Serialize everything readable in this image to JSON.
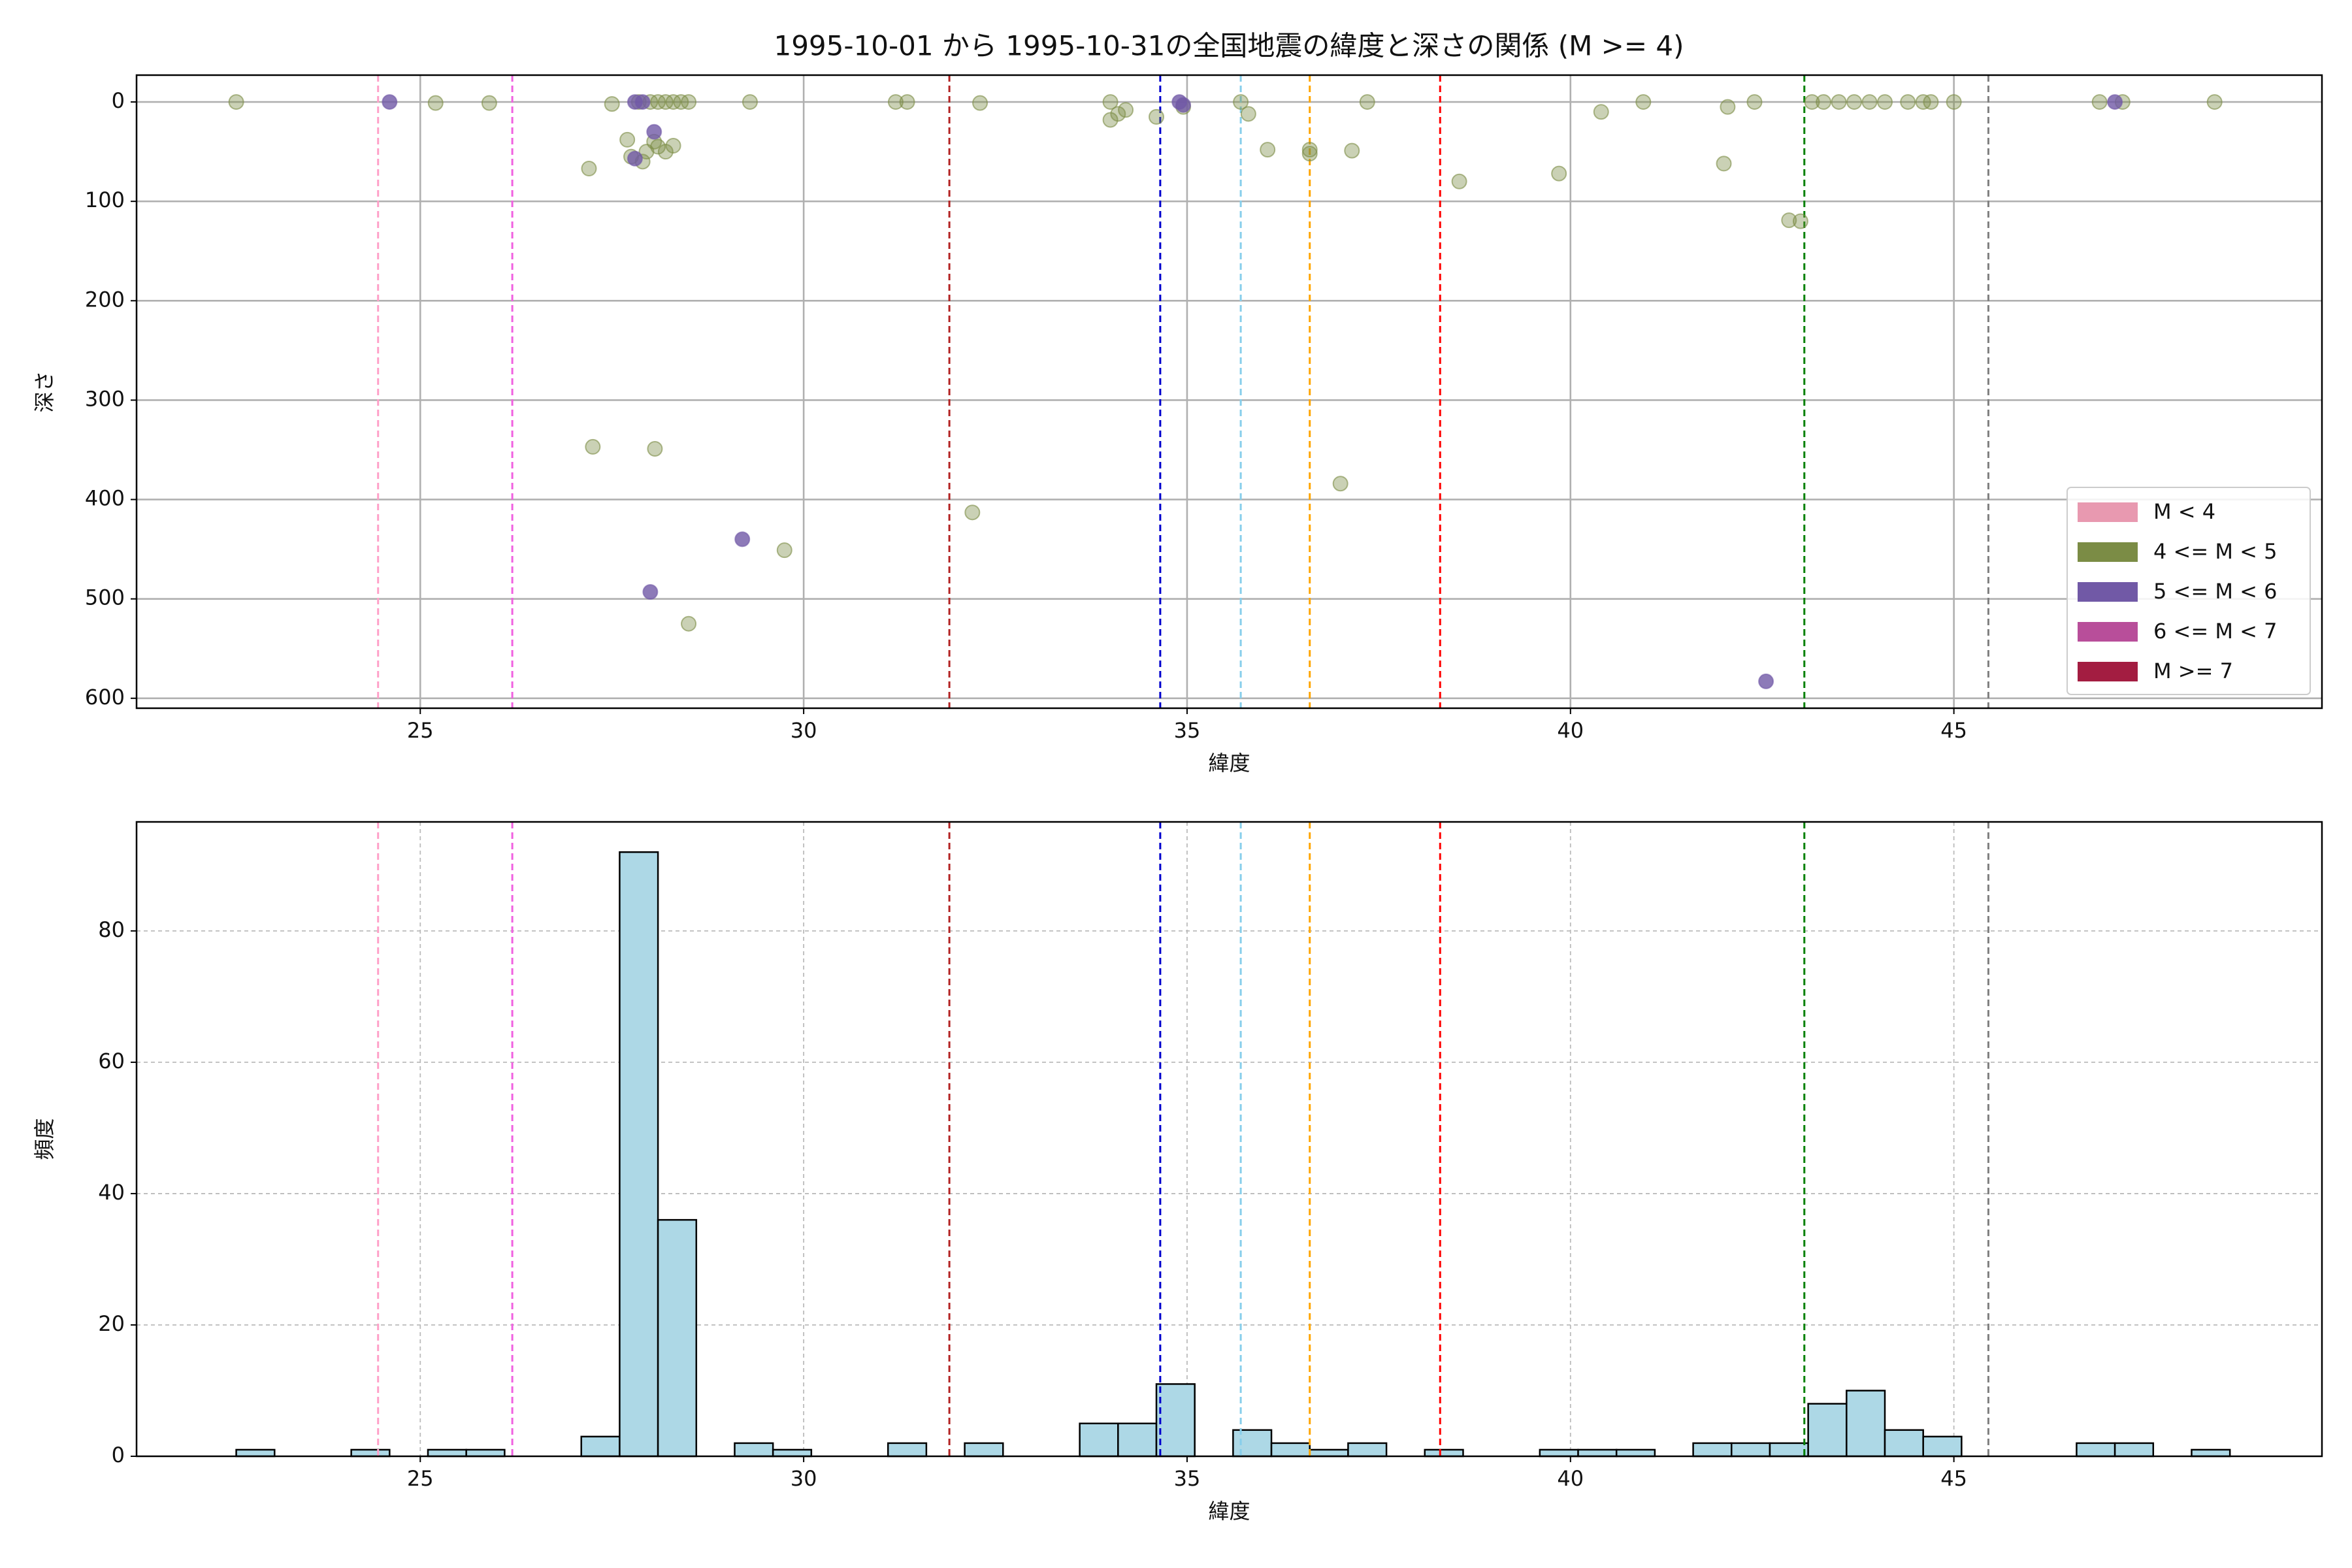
{
  "chart_data": [
    {
      "type": "scatter",
      "title": "1995-10-01 から 1995-10-31の全国地震の緯度と深さの関係 (M >= 4)",
      "x_label": "緯度",
      "y_label": "深さ",
      "xlim": [
        21.3,
        49.8
      ],
      "ylim": [
        -27,
        610
      ],
      "y_inverted": true,
      "xticks": [
        25,
        30,
        35,
        40,
        45
      ],
      "yticks": [
        0,
        100,
        200,
        300,
        400,
        500,
        600
      ],
      "grid": true,
      "grid_style": "solid",
      "legend": "lower right",
      "vlines": [
        {
          "value": 24.45,
          "color": "#ffa0c8"
        },
        {
          "value": 26.2,
          "color": "#f060e0"
        },
        {
          "value": 31.9,
          "color": "#b22222"
        },
        {
          "value": 34.65,
          "color": "#0000cd"
        },
        {
          "value": 35.7,
          "color": "#87ceeb"
        },
        {
          "value": 36.6,
          "color": "#ffa500"
        },
        {
          "value": 38.3,
          "color": "#ff0000"
        },
        {
          "value": 43.05,
          "color": "#008000"
        },
        {
          "value": 45.45,
          "color": "#808080"
        }
      ],
      "series": [
        {
          "name": "M < 4",
          "color": "#e899b0",
          "x": [],
          "y": []
        },
        {
          "name": "4 <= M < 5",
          "color": "#7b8c45",
          "x": [
            22.6,
            25.2,
            25.9,
            27.2,
            27.25,
            27.5,
            27.7,
            27.75,
            27.9,
            28.0,
            28.1,
            28.2,
            28.3,
            28.1,
            28.2,
            28.3,
            27.95,
            28.05,
            28.06,
            28.5,
            28.5,
            29.3,
            29.75,
            31.2,
            31.35,
            32.2,
            32.3,
            34.0,
            34.0,
            34.1,
            34.2,
            34.6,
            34.95,
            35.7,
            35.8,
            36.05,
            36.6,
            36.6,
            37.0,
            37.15,
            37.35,
            38.55,
            39.85,
            40.4,
            40.95,
            42.0,
            42.05,
            42.4,
            42.85,
            43.0,
            43.15,
            43.3,
            43.5,
            43.7,
            43.9,
            44.1,
            44.4,
            44.6,
            44.7,
            45.0,
            46.9,
            47.2,
            48.4,
            27.85,
            28.4
          ],
          "y": [
            0,
            1,
            1,
            67,
            347,
            2,
            38,
            55,
            60,
            0,
            0,
            0,
            0,
            45,
            50,
            44,
            50,
            40,
            349,
            0,
            525,
            0,
            451,
            0,
            0,
            413,
            1,
            0,
            18,
            12,
            8,
            15,
            5,
            0,
            12,
            48,
            52,
            48,
            384,
            49,
            0,
            80,
            72,
            10,
            0,
            62,
            5,
            0,
            119,
            120,
            0,
            0,
            0,
            0,
            0,
            0,
            0,
            0,
            0,
            0,
            0,
            0,
            0,
            0,
            0
          ]
        },
        {
          "name": "5 <= M < 6",
          "color": "#7159a6",
          "x": [
            24.6,
            27.8,
            27.9,
            27.8,
            28.05,
            28.0,
            29.2,
            34.9,
            34.95,
            42.55,
            47.1
          ],
          "y": [
            0,
            0,
            0,
            57,
            30,
            493,
            440,
            0,
            3,
            583,
            0
          ]
        },
        {
          "name": "6 <= M < 7",
          "color": "#b84e9a",
          "x": [],
          "y": []
        },
        {
          "name": "M >= 7",
          "color": "#a31d41",
          "x": [],
          "y": []
        }
      ]
    },
    {
      "type": "histogram",
      "x_label": "緯度",
      "y_label": "頻度",
      "xlim": [
        21.3,
        49.8
      ],
      "ylim": [
        0,
        96.6
      ],
      "xticks": [
        25,
        30,
        35,
        40,
        45
      ],
      "yticks": [
        0,
        20,
        40,
        60,
        80
      ],
      "grid": true,
      "grid_style": "dashed",
      "color": "#add8e6",
      "edgecolor": "#000000",
      "vlines": [
        {
          "value": 24.45,
          "color": "#ffa0c8"
        },
        {
          "value": 26.2,
          "color": "#f060e0"
        },
        {
          "value": 31.9,
          "color": "#b22222"
        },
        {
          "value": 34.65,
          "color": "#0000cd"
        },
        {
          "value": 35.7,
          "color": "#87ceeb"
        },
        {
          "value": 36.6,
          "color": "#ffa500"
        },
        {
          "value": 38.3,
          "color": "#ff0000"
        },
        {
          "value": 43.05,
          "color": "#008000"
        },
        {
          "value": 45.45,
          "color": "#808080"
        }
      ],
      "bins": [
        22.6,
        23.1,
        23.6,
        24.1,
        24.6,
        25.1,
        25.6,
        26.1,
        26.6,
        27.1,
        27.6,
        28.1,
        28.6,
        29.1,
        29.6,
        30.1,
        30.6,
        31.1,
        31.6,
        32.1,
        32.6,
        33.1,
        33.6,
        34.1,
        34.6,
        35.1,
        35.6,
        36.1,
        36.6,
        37.1,
        37.6,
        38.1,
        38.6,
        39.1,
        39.6,
        40.1,
        40.6,
        41.1,
        41.6,
        42.1,
        42.6,
        43.1,
        43.6,
        44.1,
        44.6,
        45.1,
        45.6,
        46.1,
        46.6,
        47.1,
        47.6,
        48.1,
        48.6
      ],
      "values": [
        1,
        0,
        0,
        1,
        0,
        1,
        1,
        0,
        0,
        3,
        92,
        36,
        0,
        2,
        1,
        0,
        0,
        2,
        0,
        2,
        0,
        0,
        5,
        5,
        11,
        0,
        4,
        2,
        1,
        2,
        0,
        1,
        0,
        0,
        1,
        1,
        1,
        0,
        2,
        2,
        2,
        8,
        10,
        4,
        3,
        0,
        0,
        0,
        2,
        2,
        0,
        1
      ]
    }
  ]
}
